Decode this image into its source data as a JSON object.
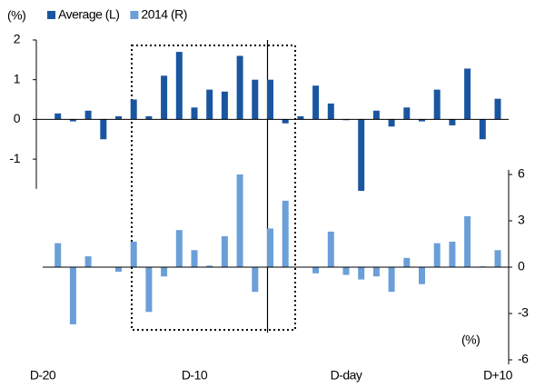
{
  "chart_data": {
    "type": "bar",
    "y_label": "(%)",
    "y2_label": "(%)",
    "categories": [
      "D-20",
      null,
      null,
      null,
      null,
      null,
      null,
      null,
      null,
      null,
      "D-10",
      null,
      null,
      null,
      null,
      null,
      null,
      null,
      null,
      null,
      "D-day",
      null,
      null,
      null,
      null,
      null,
      null,
      null,
      null,
      null,
      "D+10"
    ],
    "series": [
      {
        "name": "Average (L)",
        "color": "#1a56a0",
        "values": [
          0,
          0.15,
          -0.05,
          0.22,
          -0.5,
          0.08,
          0.5,
          0.08,
          1.1,
          1.7,
          0.3,
          0.75,
          0.7,
          1.6,
          1.0,
          1.0,
          -0.1,
          0.08,
          0.85,
          0.4,
          -0.02,
          -1.8,
          0.22,
          -0.18,
          0.3,
          -0.05,
          0.75,
          -0.15,
          1.28,
          -0.5,
          0.52
        ]
      },
      {
        "name": "2014 (R)",
        "color": "#6a9fd8",
        "axis": "y2",
        "values": [
          0,
          1.55,
          -3.7,
          0.7,
          0,
          -0.3,
          1.65,
          -2.9,
          -0.6,
          2.4,
          1.1,
          0.1,
          2.0,
          6.0,
          -1.6,
          2.5,
          4.3,
          0,
          -0.4,
          2.3,
          -0.5,
          -0.8,
          -0.6,
          -1.6,
          0.6,
          -1.1,
          1.55,
          1.65,
          3.3,
          0.05,
          1.1
        ]
      }
    ],
    "ylim": [
      -1.75,
      2
    ],
    "yticks": [
      -1,
      0,
      1,
      2
    ],
    "y2lim": [
      -6.3,
      6.3
    ],
    "y2ticks": [
      -6,
      -3,
      0,
      3,
      6
    ]
  }
}
